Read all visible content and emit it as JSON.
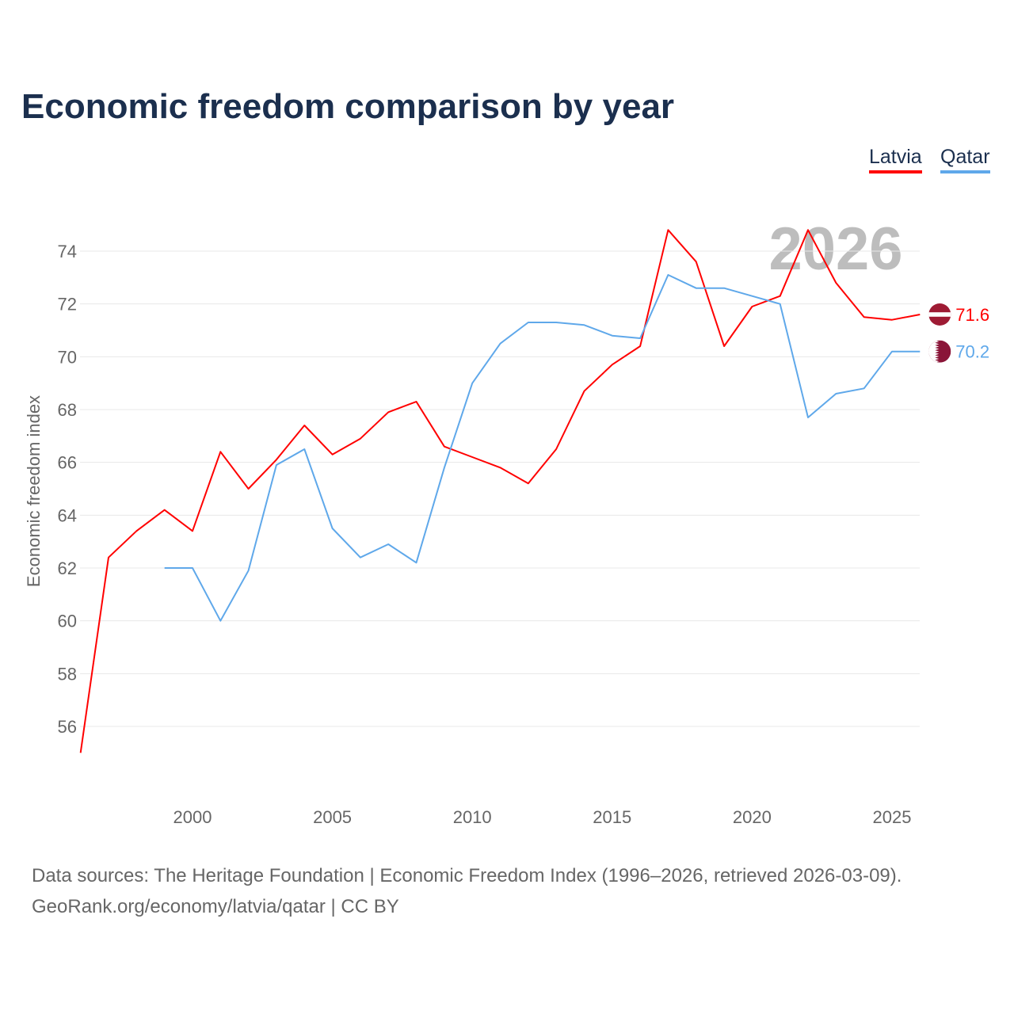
{
  "title": "Economic freedom comparison by year",
  "legend": [
    {
      "label": "Latvia",
      "color": "#ff0000"
    },
    {
      "label": "Qatar",
      "color": "#5fa8ea"
    }
  ],
  "watermark_year": "2026",
  "footer": {
    "line1": "Data sources: The Heritage Foundation | Economic Freedom Index (1996–2026, retrieved 2026-03-09).",
    "line2": "GeoRank.org/economy/latvia/qatar | CC BY"
  },
  "chart_data": {
    "type": "line",
    "title": "Economic freedom comparison by year",
    "xlabel": "",
    "ylabel": "Economic freedom index",
    "xlim": [
      1996,
      2026
    ],
    "ylim": [
      55,
      75
    ],
    "xticks": [
      2000,
      2005,
      2010,
      2015,
      2020,
      2025
    ],
    "yticks": [
      56,
      58,
      60,
      62,
      64,
      66,
      68,
      70,
      72,
      74
    ],
    "grid": true,
    "legend_position": "top-right",
    "series": [
      {
        "name": "Latvia",
        "color": "#ff0000",
        "end_label": "71.6",
        "x": [
          1996,
          1997,
          1998,
          1999,
          2000,
          2001,
          2002,
          2003,
          2004,
          2005,
          2006,
          2007,
          2008,
          2009,
          2010,
          2011,
          2012,
          2013,
          2014,
          2015,
          2016,
          2017,
          2018,
          2019,
          2020,
          2021,
          2022,
          2023,
          2024,
          2025,
          2026
        ],
        "values": [
          55.0,
          62.4,
          63.4,
          64.2,
          63.4,
          66.4,
          65.0,
          66.1,
          67.4,
          66.3,
          66.9,
          67.9,
          68.3,
          66.6,
          66.2,
          65.8,
          65.2,
          66.5,
          68.7,
          69.7,
          70.4,
          74.8,
          73.6,
          70.4,
          71.9,
          72.3,
          74.8,
          72.8,
          71.5,
          71.4,
          71.6
        ]
      },
      {
        "name": "Qatar",
        "color": "#5fa8ea",
        "end_label": "70.2",
        "x": [
          1999,
          2000,
          2001,
          2002,
          2003,
          2004,
          2005,
          2006,
          2007,
          2008,
          2009,
          2010,
          2011,
          2012,
          2013,
          2014,
          2015,
          2016,
          2017,
          2018,
          2019,
          2020,
          2021,
          2022,
          2023,
          2024,
          2025,
          2026
        ],
        "values": [
          62.0,
          62.0,
          60.0,
          61.9,
          65.9,
          66.5,
          63.5,
          62.4,
          62.9,
          62.2,
          65.8,
          69.0,
          70.5,
          71.3,
          71.3,
          71.2,
          70.8,
          70.7,
          73.1,
          72.6,
          72.6,
          72.3,
          72.0,
          67.7,
          68.6,
          68.8,
          70.2,
          70.2
        ]
      }
    ]
  }
}
